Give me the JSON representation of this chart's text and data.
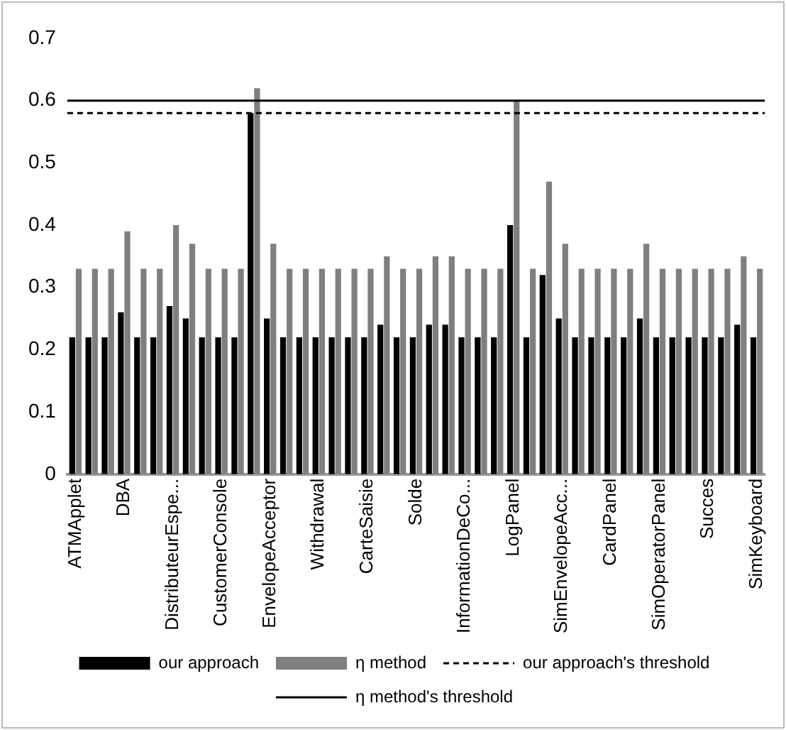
{
  "chart_data": {
    "type": "bar",
    "categories": [
      "ATMApplet",
      null,
      null,
      "DBA",
      null,
      null,
      "DistributeurEspe...",
      null,
      null,
      "CustomerConsole",
      null,
      null,
      "EnvelopeAcceptor",
      null,
      null,
      "Withdrawal",
      null,
      null,
      "CarteSaisie",
      null,
      null,
      "Solde",
      null,
      null,
      "InformationDeCo...",
      null,
      null,
      "LogPanel",
      null,
      null,
      "SimEnvelopeAcc...",
      null,
      null,
      "CardPanel",
      null,
      null,
      "SimOperatorPanel",
      null,
      null,
      "Succes",
      null,
      null,
      "SimKeyboard"
    ],
    "series": [
      {
        "name": "our approach",
        "color": "#000000",
        "values": [
          0.22,
          0.22,
          0.22,
          0.26,
          0.22,
          0.22,
          0.27,
          0.25,
          0.22,
          0.22,
          0.22,
          0.58,
          0.25,
          0.22,
          0.22,
          0.22,
          0.22,
          0.22,
          0.22,
          0.24,
          0.22,
          0.22,
          0.24,
          0.24,
          0.22,
          0.22,
          0.22,
          0.4,
          0.22,
          0.32,
          0.25,
          0.22,
          0.22,
          0.22,
          0.22,
          0.25,
          0.22,
          0.22,
          0.22,
          0.22,
          0.22,
          0.24,
          0.22
        ]
      },
      {
        "name": "η method",
        "color": "#7f7f7f",
        "values": [
          0.33,
          0.33,
          0.33,
          0.39,
          0.33,
          0.33,
          0.4,
          0.37,
          0.33,
          0.33,
          0.33,
          0.62,
          0.37,
          0.33,
          0.33,
          0.33,
          0.33,
          0.33,
          0.33,
          0.35,
          0.33,
          0.33,
          0.35,
          0.35,
          0.33,
          0.33,
          0.33,
          0.6,
          0.33,
          0.47,
          0.37,
          0.33,
          0.33,
          0.33,
          0.33,
          0.37,
          0.33,
          0.33,
          0.33,
          0.33,
          0.33,
          0.35,
          0.33
        ]
      }
    ],
    "ref_lines": [
      {
        "axis": "y",
        "value": 0.58,
        "label": "our approach's threshold",
        "color": "#000000",
        "line_style": "dashed"
      },
      {
        "axis": "y",
        "value": 0.6,
        "label": "η method's threshold",
        "color": "#000000",
        "line_style": "solid"
      }
    ],
    "ylim": [
      0,
      0.7
    ],
    "yticks": [
      0,
      0.1,
      0.2,
      0.3,
      0.4,
      0.5,
      0.6,
      0.7
    ],
    "grid": false,
    "legend": "bottom"
  }
}
